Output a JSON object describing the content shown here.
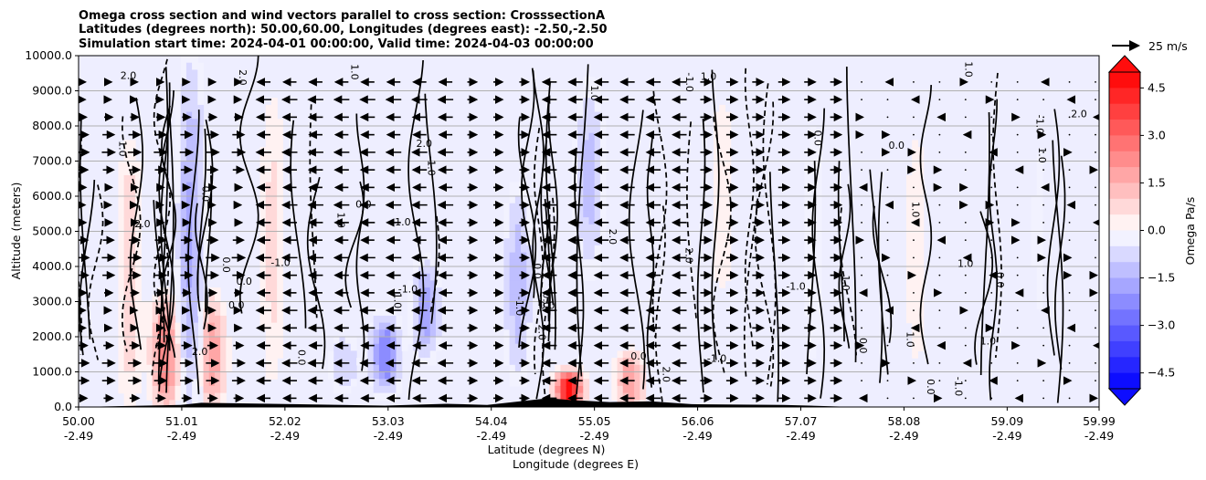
{
  "chart_data": {
    "type": "heatmap",
    "title_lines": [
      "Omega cross section and wind vectors parallel to cross section: CrosssectionA",
      "Latitudes (degrees north): 50.00,60.00, Longitudes (degrees east): -2.50,-2.50",
      "Simulation start time: 2024-04-01 00:00:00, Valid time: 2024-04-03 00:00:00"
    ],
    "ylabel": "Altitude (meters)",
    "xlabel_lines": [
      "Latitude (degrees N)",
      "Longitude (degrees E)"
    ],
    "ylim": [
      0,
      10000
    ],
    "y_ticks": [
      "0.0",
      "1000.0",
      "2000.0",
      "3000.0",
      "4000.0",
      "5000.0",
      "6000.0",
      "7000.0",
      "8000.0",
      "9000.0",
      "10000.0"
    ],
    "x_ticks": [
      {
        "lat": "50.00",
        "lon": "-2.49"
      },
      {
        "lat": "51.01",
        "lon": "-2.49"
      },
      {
        "lat": "52.02",
        "lon": "-2.49"
      },
      {
        "lat": "53.03",
        "lon": "-2.49"
      },
      {
        "lat": "54.04",
        "lon": "-2.49"
      },
      {
        "lat": "55.05",
        "lon": "-2.49"
      },
      {
        "lat": "56.06",
        "lon": "-2.49"
      },
      {
        "lat": "57.07",
        "lon": "-2.49"
      },
      {
        "lat": "58.08",
        "lon": "-2.49"
      },
      {
        "lat": "59.09",
        "lon": "-2.49"
      },
      {
        "lat": "59.99",
        "lon": "-2.49"
      }
    ],
    "grid": "horizontal",
    "colorbar": {
      "label": "Omega Pa/s",
      "ticks": [
        "−4.5",
        "−3.0",
        "−1.5",
        "0.0",
        "1.5",
        "3.0",
        "4.5"
      ],
      "tick_values": [
        -4.5,
        -3.0,
        -1.5,
        0.0,
        1.5,
        3.0,
        4.5
      ],
      "range": [
        -5.0,
        5.0
      ],
      "extend": "both",
      "cmap": "bwr"
    },
    "vector_key": {
      "label": "25 m/s",
      "speed": 25
    },
    "contour_label_samples": [
      "0.0",
      "-1.0",
      "1.0",
      "2.0"
    ],
    "omega_features": [
      {
        "lat": 50.5,
        "alt_range": [
          0,
          7500
        ],
        "sign": "positive",
        "strength": 0.8
      },
      {
        "lat": 50.85,
        "alt_range": [
          0,
          3000
        ],
        "sign": "positive",
        "strength": 2.5
      },
      {
        "lat": 51.1,
        "alt_range": [
          0,
          9500
        ],
        "sign": "negative",
        "strength": 1.6
      },
      {
        "lat": 51.3,
        "alt_range": [
          0,
          3000
        ],
        "sign": "positive",
        "strength": 2.0
      },
      {
        "lat": 51.9,
        "alt_range": [
          500,
          9000
        ],
        "sign": "positive",
        "strength": 0.6
      },
      {
        "lat": 52.6,
        "alt_range": [
          500,
          2000
        ],
        "sign": "negative",
        "strength": 1.0
      },
      {
        "lat": 53.0,
        "alt_range": [
          500,
          2500
        ],
        "sign": "negative",
        "strength": 2.6
      },
      {
        "lat": 53.4,
        "alt_range": [
          1500,
          4000
        ],
        "sign": "negative",
        "strength": 1.8
      },
      {
        "lat": 54.3,
        "alt_range": [
          1000,
          6000
        ],
        "sign": "negative",
        "strength": 1.3
      },
      {
        "lat": 54.8,
        "alt_range": [
          0,
          1000
        ],
        "sign": "positive",
        "strength": 4.8
      },
      {
        "lat": 55.0,
        "alt_range": [
          4000,
          9000
        ],
        "sign": "negative",
        "strength": 1.2
      },
      {
        "lat": 55.4,
        "alt_range": [
          0,
          1500
        ],
        "sign": "positive",
        "strength": 2.0
      },
      {
        "lat": 56.3,
        "alt_range": [
          3000,
          9000
        ],
        "sign": "positive",
        "strength": 0.5
      },
      {
        "lat": 57.2,
        "alt_range": [
          500,
          9000
        ],
        "sign": "negative",
        "strength": 0.4
      },
      {
        "lat": 58.2,
        "alt_range": [
          500,
          8500
        ],
        "sign": "positive",
        "strength": 0.4
      },
      {
        "lat": 59.4,
        "alt_range": [
          1000,
          9000
        ],
        "sign": "negative",
        "strength": 0.3
      }
    ],
    "wind_vectors_note_free": true,
    "terrain_lat": [
      50.0,
      51.0,
      51.2,
      52.1,
      53.0,
      53.6,
      54.0,
      54.6,
      54.8,
      55.2,
      55.6,
      56.0,
      56.9,
      57.6,
      58.0
    ],
    "terrain_alt": [
      0,
      60,
      120,
      80,
      40,
      90,
      60,
      250,
      200,
      140,
      160,
      80,
      60,
      0,
      0
    ]
  }
}
